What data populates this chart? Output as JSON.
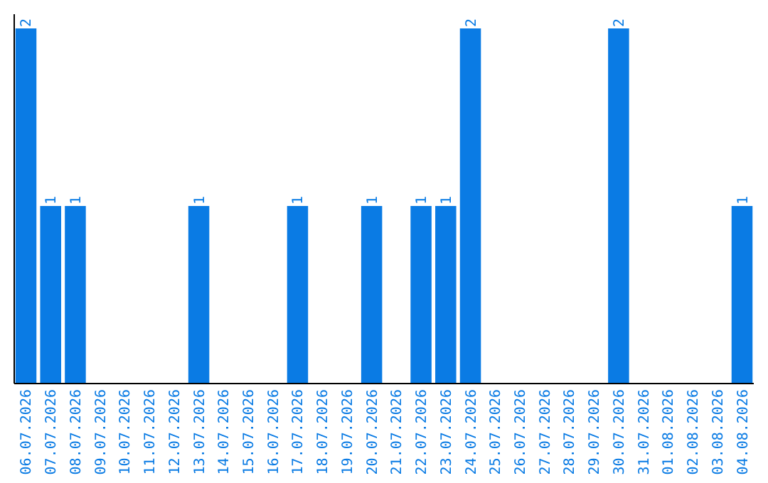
{
  "chart_data": {
    "type": "bar",
    "color": "#0a7be4",
    "categories": [
      "06.07.2026",
      "07.07.2026",
      "08.07.2026",
      "09.07.2026",
      "10.07.2026",
      "11.07.2026",
      "12.07.2026",
      "13.07.2026",
      "14.07.2026",
      "15.07.2026",
      "16.07.2026",
      "17.07.2026",
      "18.07.2026",
      "19.07.2026",
      "20.07.2026",
      "21.07.2026",
      "22.07.2026",
      "23.07.2026",
      "24.07.2026",
      "25.07.2026",
      "26.07.2026",
      "27.07.2026",
      "28.07.2026",
      "29.07.2026",
      "30.07.2026",
      "31.07.2026",
      "01.08.2026",
      "02.08.2026",
      "03.08.2026",
      "04.08.2026"
    ],
    "values": [
      2,
      1,
      1,
      0,
      0,
      0,
      0,
      1,
      0,
      0,
      0,
      1,
      0,
      0,
      1,
      0,
      1,
      1,
      2,
      0,
      0,
      0,
      0,
      0,
      2,
      0,
      0,
      0,
      0,
      1
    ],
    "value_labels": [
      "2",
      "1",
      "1",
      null,
      null,
      null,
      null,
      "1",
      null,
      null,
      null,
      "1",
      null,
      null,
      "1",
      null,
      "1",
      "1",
      "2",
      null,
      null,
      null,
      null,
      null,
      "2",
      null,
      null,
      null,
      null,
      "1"
    ]
  }
}
